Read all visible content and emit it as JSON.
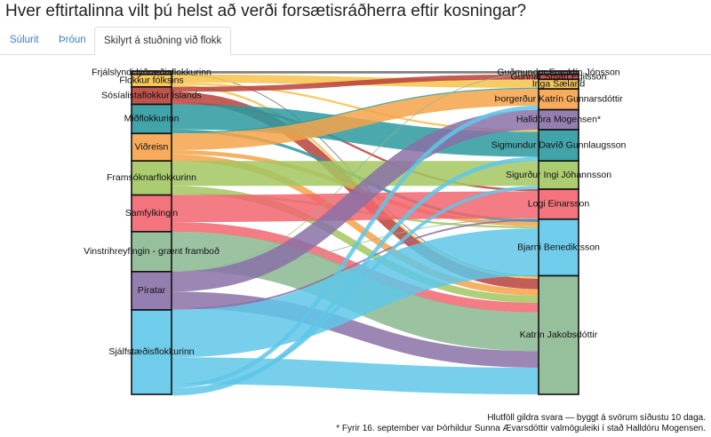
{
  "title": "Hver eftirtalinna vilt þú helst að verði forsætisráðherra eftir kosningar?",
  "tabs": [
    {
      "label": "Súlurit",
      "active": false
    },
    {
      "label": "Þróun",
      "active": false
    },
    {
      "label": "Skilyrt á stuðning við flokk",
      "active": true
    }
  ],
  "chart_data": {
    "type": "sankey",
    "left_nodes": [
      {
        "name": "Frjálslyndi lýðræðisflokkurinn",
        "value": 0.8,
        "color": "#6b6b6b"
      },
      {
        "name": "Flokkur fólksins",
        "value": 3.0,
        "color": "#f6c24a"
      },
      {
        "name": "Sósíalistaflokkur Íslands",
        "value": 4.2,
        "color": "#b8413a"
      },
      {
        "name": "Miðflokkurinn",
        "value": 7.0,
        "color": "#2b9aa0"
      },
      {
        "name": "Viðreisn",
        "value": 6.6,
        "color": "#f5a34a"
      },
      {
        "name": "Framsóknarflokkurinn",
        "value": 8.2,
        "color": "#a3c761"
      },
      {
        "name": "Samfylkingin",
        "value": 8.8,
        "color": "#f2656e"
      },
      {
        "name": "Vinstrihreyfingin - grænt framboð",
        "value": 9.6,
        "color": "#8bb890"
      },
      {
        "name": "Píratar",
        "value": 9.2,
        "color": "#8a71a7"
      },
      {
        "name": "Sjálfstæðisflokkurinn",
        "value": 20.3,
        "color": "#5fc7e8"
      }
    ],
    "right_nodes": [
      {
        "name": "Guðmundur Franklín Jónsson",
        "value": 0.8,
        "color": "#6b6b6b"
      },
      {
        "name": "Gunnar Smári Egilsson",
        "value": 1.2,
        "color": "#b8413a"
      },
      {
        "name": "Inga Sæland",
        "value": 2.3,
        "color": "#f6c24a"
      },
      {
        "name": "Þorgerður Katrín Gunnarsdóttir",
        "value": 5.0,
        "color": "#f5a34a"
      },
      {
        "name": "Halldóra Mogensen*",
        "value": 4.8,
        "color": "#8a71a7"
      },
      {
        "name": "Sigmundur Davíð Gunnlaugsson",
        "value": 7.5,
        "color": "#2b9aa0"
      },
      {
        "name": "Sigurður Ingi Jóhannsson",
        "value": 6.8,
        "color": "#a3c761"
      },
      {
        "name": "Logi Einarsson",
        "value": 7.2,
        "color": "#f2656e"
      },
      {
        "name": "Bjarni Benediktsson",
        "value": 13.6,
        "color": "#5fc7e8"
      },
      {
        "name": "Katrín Jakobsdóttir",
        "value": 28.5,
        "color": "#8bb890"
      }
    ],
    "links": [
      [
        0,
        0,
        0.6
      ],
      [
        0,
        9,
        0.2
      ],
      [
        1,
        2,
        2.0
      ],
      [
        1,
        5,
        0.5
      ],
      [
        1,
        9,
        0.5
      ],
      [
        2,
        1,
        1.2
      ],
      [
        2,
        9,
        2.5
      ],
      [
        2,
        7,
        0.5
      ],
      [
        3,
        5,
        6.0
      ],
      [
        3,
        8,
        0.7
      ],
      [
        3,
        2,
        0.3
      ],
      [
        4,
        3,
        4.0
      ],
      [
        4,
        8,
        1.0
      ],
      [
        4,
        9,
        1.6
      ],
      [
        5,
        6,
        6.0
      ],
      [
        5,
        9,
        1.7
      ],
      [
        5,
        8,
        0.5
      ],
      [
        6,
        7,
        6.5
      ],
      [
        6,
        9,
        2.3
      ],
      [
        7,
        9,
        9.3
      ],
      [
        7,
        7,
        0.2
      ],
      [
        7,
        0,
        0.1
      ],
      [
        8,
        4,
        4.8
      ],
      [
        8,
        9,
        4.0
      ],
      [
        8,
        7,
        0.4
      ],
      [
        9,
        8,
        11.4
      ],
      [
        9,
        9,
        6.4
      ],
      [
        9,
        3,
        1.0
      ],
      [
        9,
        6,
        0.8
      ],
      [
        9,
        5,
        1.0
      ]
    ]
  },
  "footer": {
    "line1": "Hlutföll gildra svara — byggt á svörum síðustu 10 daga.",
    "line2": "* Fyrir 16. september var Þórhildur Sunna Ævarsdóttir valmöguleiki í stað Halldóru Mogensen."
  }
}
